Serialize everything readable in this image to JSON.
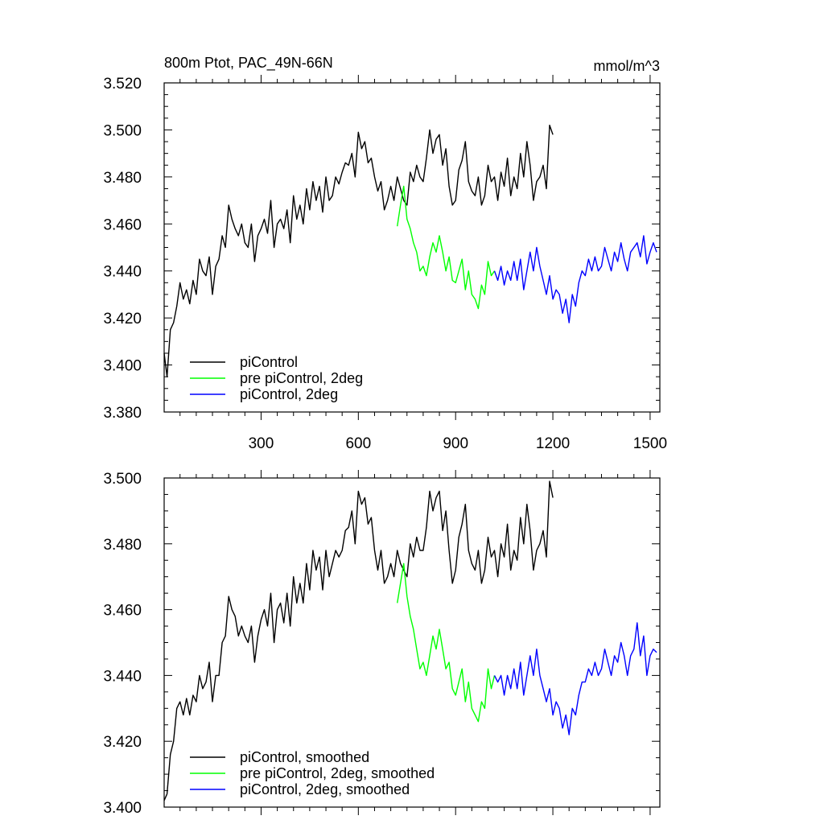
{
  "colors": {
    "black": "#000000",
    "green": "#00ff00",
    "blue": "#0000ff"
  },
  "chart_data": [
    {
      "type": "line",
      "title": "800m Ptot, PAC_49N-66N",
      "units": "mmol/m^3",
      "xlim": [
        1,
        1530
      ],
      "ylim": [
        3.38,
        3.52
      ],
      "xticks": [
        300,
        600,
        900,
        1200,
        1500
      ],
      "xtick_labels": [
        "300",
        "600",
        "900",
        "1200",
        "1500"
      ],
      "yticks": [
        3.38,
        3.4,
        3.42,
        3.44,
        3.46,
        3.48,
        3.5,
        3.52
      ],
      "ytick_labels": [
        "3.380",
        "3.400",
        "3.420",
        "3.440",
        "3.460",
        "3.480",
        "3.500",
        "3.520"
      ],
      "legend_position": "bottom-left",
      "series": [
        {
          "name": "piControl",
          "color": "#000000",
          "x": [
            1,
            10,
            20,
            30,
            40,
            50,
            60,
            70,
            80,
            90,
            100,
            110,
            120,
            130,
            140,
            150,
            160,
            170,
            180,
            190,
            200,
            210,
            220,
            230,
            240,
            250,
            260,
            270,
            280,
            290,
            300,
            310,
            320,
            330,
            340,
            350,
            360,
            370,
            380,
            390,
            400,
            410,
            420,
            430,
            440,
            450,
            460,
            470,
            480,
            490,
            500,
            510,
            520,
            530,
            540,
            550,
            560,
            570,
            580,
            590,
            600,
            610,
            620,
            630,
            640,
            650,
            660,
            670,
            680,
            690,
            700,
            710,
            720,
            730,
            740,
            750,
            760,
            770,
            780,
            790,
            800,
            810,
            820,
            830,
            840,
            850,
            860,
            870,
            880,
            890,
            900,
            910,
            920,
            930,
            940,
            950,
            960,
            970,
            980,
            990,
            1000,
            1010,
            1020,
            1030,
            1040,
            1050,
            1060,
            1070,
            1080,
            1090,
            1100,
            1110,
            1120,
            1130,
            1140,
            1150,
            1160,
            1170,
            1180,
            1190,
            1200
          ],
          "y": [
            3.405,
            3.395,
            3.415,
            3.418,
            3.425,
            3.435,
            3.428,
            3.432,
            3.426,
            3.436,
            3.43,
            3.445,
            3.44,
            3.438,
            3.446,
            3.43,
            3.442,
            3.445,
            3.455,
            3.45,
            3.468,
            3.462,
            3.458,
            3.455,
            3.46,
            3.452,
            3.45,
            3.46,
            3.444,
            3.455,
            3.458,
            3.462,
            3.456,
            3.47,
            3.45,
            3.46,
            3.462,
            3.458,
            3.466,
            3.452,
            3.472,
            3.462,
            3.468,
            3.46,
            3.475,
            3.466,
            3.478,
            3.47,
            3.476,
            3.465,
            3.48,
            3.47,
            3.472,
            3.48,
            3.477,
            3.482,
            3.486,
            3.485,
            3.49,
            3.48,
            3.499,
            3.492,
            3.495,
            3.486,
            3.488,
            3.48,
            3.474,
            3.478,
            3.466,
            3.47,
            3.476,
            3.47,
            3.48,
            3.475,
            3.47,
            3.468,
            3.482,
            3.478,
            3.485,
            3.48,
            3.478,
            3.488,
            3.5,
            3.49,
            3.496,
            3.498,
            3.485,
            3.492,
            3.476,
            3.468,
            3.47,
            3.483,
            3.487,
            3.495,
            3.478,
            3.474,
            3.472,
            3.48,
            3.468,
            3.472,
            3.485,
            3.478,
            3.48,
            3.47,
            3.482,
            3.476,
            3.488,
            3.472,
            3.48,
            3.475,
            3.49,
            3.48,
            3.495,
            3.485,
            3.47,
            3.478,
            3.48,
            3.485,
            3.475,
            3.502,
            3.498
          ]
        },
        {
          "name": "pre piControl, 2deg",
          "color": "#00ff00",
          "x": [
            720,
            730,
            740,
            750,
            760,
            770,
            780,
            790,
            800,
            810,
            820,
            830,
            840,
            850,
            860,
            870,
            880,
            890,
            900,
            910,
            920,
            930,
            940,
            950,
            960,
            970,
            980,
            990,
            1000,
            1010,
            1020
          ],
          "y": [
            3.459,
            3.468,
            3.476,
            3.462,
            3.458,
            3.452,
            3.448,
            3.44,
            3.442,
            3.438,
            3.446,
            3.452,
            3.448,
            3.455,
            3.448,
            3.44,
            3.446,
            3.436,
            3.435,
            3.44,
            3.445,
            3.432,
            3.44,
            3.43,
            3.428,
            3.424,
            3.434,
            3.43,
            3.444,
            3.438,
            3.44
          ]
        },
        {
          "name": "piControl, 2deg",
          "color": "#0000ff",
          "x": [
            1020,
            1030,
            1040,
            1050,
            1060,
            1070,
            1080,
            1090,
            1100,
            1110,
            1120,
            1130,
            1140,
            1150,
            1160,
            1170,
            1180,
            1190,
            1200,
            1210,
            1220,
            1230,
            1240,
            1250,
            1260,
            1270,
            1280,
            1290,
            1300,
            1310,
            1320,
            1330,
            1340,
            1350,
            1360,
            1370,
            1380,
            1390,
            1400,
            1410,
            1420,
            1430,
            1440,
            1450,
            1460,
            1470,
            1480,
            1490,
            1500,
            1510,
            1520
          ],
          "y": [
            3.44,
            3.436,
            3.442,
            3.434,
            3.44,
            3.436,
            3.444,
            3.436,
            3.445,
            3.432,
            3.44,
            3.448,
            3.44,
            3.45,
            3.442,
            3.436,
            3.43,
            3.438,
            3.428,
            3.432,
            3.43,
            3.422,
            3.428,
            3.418,
            3.43,
            3.425,
            3.435,
            3.44,
            3.438,
            3.445,
            3.44,
            3.446,
            3.44,
            3.442,
            3.45,
            3.445,
            3.44,
            3.448,
            3.444,
            3.452,
            3.445,
            3.44,
            3.448,
            3.45,
            3.452,
            3.446,
            3.455,
            3.443,
            3.448,
            3.452,
            3.448
          ]
        }
      ]
    },
    {
      "type": "line",
      "title": "",
      "xlim": [
        1,
        1530
      ],
      "ylim": [
        3.4,
        3.5
      ],
      "xticks": [
        300,
        600,
        900,
        1200,
        1500
      ],
      "yticks": [
        3.4,
        3.42,
        3.44,
        3.46,
        3.48,
        3.5
      ],
      "ytick_labels": [
        "3.400",
        "3.420",
        "3.440",
        "3.460",
        "3.480",
        "3.500"
      ],
      "legend_position": "bottom-left",
      "series": [
        {
          "name": "piControl, smoothed",
          "color": "#000000",
          "x": [
            1,
            10,
            20,
            30,
            40,
            50,
            60,
            70,
            80,
            90,
            100,
            110,
            120,
            130,
            140,
            150,
            160,
            170,
            180,
            190,
            200,
            210,
            220,
            230,
            240,
            250,
            260,
            270,
            280,
            290,
            300,
            310,
            320,
            330,
            340,
            350,
            360,
            370,
            380,
            390,
            400,
            410,
            420,
            430,
            440,
            450,
            460,
            470,
            480,
            490,
            500,
            510,
            520,
            530,
            540,
            550,
            560,
            570,
            580,
            590,
            600,
            610,
            620,
            630,
            640,
            650,
            660,
            670,
            680,
            690,
            700,
            710,
            720,
            730,
            740,
            750,
            760,
            770,
            780,
            790,
            800,
            810,
            820,
            830,
            840,
            850,
            860,
            870,
            880,
            890,
            900,
            910,
            920,
            930,
            940,
            950,
            960,
            970,
            980,
            990,
            1000,
            1010,
            1020,
            1030,
            1040,
            1050,
            1060,
            1070,
            1080,
            1090,
            1100,
            1110,
            1120,
            1130,
            1140,
            1150,
            1160,
            1170,
            1180,
            1190,
            1200
          ],
          "y": [
            3.402,
            3.404,
            3.416,
            3.42,
            3.43,
            3.432,
            3.428,
            3.433,
            3.428,
            3.434,
            3.432,
            3.44,
            3.436,
            3.438,
            3.444,
            3.432,
            3.44,
            3.44,
            3.45,
            3.452,
            3.464,
            3.46,
            3.458,
            3.452,
            3.455,
            3.452,
            3.45,
            3.455,
            3.444,
            3.452,
            3.457,
            3.46,
            3.455,
            3.465,
            3.45,
            3.46,
            3.462,
            3.456,
            3.465,
            3.455,
            3.47,
            3.462,
            3.468,
            3.462,
            3.474,
            3.466,
            3.478,
            3.472,
            3.476,
            3.466,
            3.478,
            3.47,
            3.474,
            3.478,
            3.476,
            3.478,
            3.484,
            3.485,
            3.49,
            3.48,
            3.496,
            3.492,
            3.494,
            3.486,
            3.488,
            3.478,
            3.472,
            3.478,
            3.468,
            3.47,
            3.474,
            3.47,
            3.478,
            3.474,
            3.472,
            3.47,
            3.48,
            3.476,
            3.482,
            3.478,
            3.478,
            3.485,
            3.496,
            3.49,
            3.494,
            3.496,
            3.484,
            3.49,
            3.478,
            3.468,
            3.472,
            3.482,
            3.486,
            3.492,
            3.478,
            3.474,
            3.472,
            3.478,
            3.468,
            3.472,
            3.482,
            3.476,
            3.478,
            3.47,
            3.48,
            3.476,
            3.486,
            3.472,
            3.478,
            3.475,
            3.488,
            3.48,
            3.492,
            3.484,
            3.472,
            3.478,
            3.48,
            3.484,
            3.476,
            3.499,
            3.494
          ]
        },
        {
          "name": "pre piControl, 2deg, smoothed",
          "color": "#00ff00",
          "x": [
            720,
            730,
            740,
            750,
            760,
            770,
            780,
            790,
            800,
            810,
            820,
            830,
            840,
            850,
            860,
            870,
            880,
            890,
            900,
            910,
            920,
            930,
            940,
            950,
            960,
            970,
            980,
            990,
            1000,
            1010,
            1020
          ],
          "y": [
            3.462,
            3.468,
            3.474,
            3.464,
            3.458,
            3.454,
            3.448,
            3.442,
            3.444,
            3.44,
            3.446,
            3.452,
            3.448,
            3.454,
            3.448,
            3.442,
            3.444,
            3.436,
            3.434,
            3.438,
            3.442,
            3.432,
            3.438,
            3.43,
            3.428,
            3.426,
            3.432,
            3.43,
            3.442,
            3.436,
            3.44
          ]
        },
        {
          "name": "piControl, 2deg, smoothed",
          "color": "#0000ff",
          "x": [
            1020,
            1030,
            1040,
            1050,
            1060,
            1070,
            1080,
            1090,
            1100,
            1110,
            1120,
            1130,
            1140,
            1150,
            1160,
            1170,
            1180,
            1190,
            1200,
            1210,
            1220,
            1230,
            1240,
            1250,
            1260,
            1270,
            1280,
            1290,
            1300,
            1310,
            1320,
            1330,
            1340,
            1350,
            1360,
            1370,
            1380,
            1390,
            1400,
            1410,
            1420,
            1430,
            1440,
            1450,
            1460,
            1470,
            1480,
            1490,
            1500,
            1510,
            1520
          ],
          "y": [
            3.44,
            3.438,
            3.44,
            3.434,
            3.44,
            3.436,
            3.442,
            3.436,
            3.444,
            3.434,
            3.44,
            3.446,
            3.44,
            3.448,
            3.44,
            3.436,
            3.432,
            3.436,
            3.428,
            3.432,
            3.43,
            3.424,
            3.428,
            3.422,
            3.43,
            3.428,
            3.434,
            3.438,
            3.438,
            3.442,
            3.44,
            3.444,
            3.44,
            3.442,
            3.448,
            3.444,
            3.44,
            3.446,
            3.444,
            3.45,
            3.446,
            3.44,
            3.446,
            3.448,
            3.456,
            3.446,
            3.452,
            3.44,
            3.446,
            3.448,
            3.447
          ]
        }
      ]
    }
  ]
}
